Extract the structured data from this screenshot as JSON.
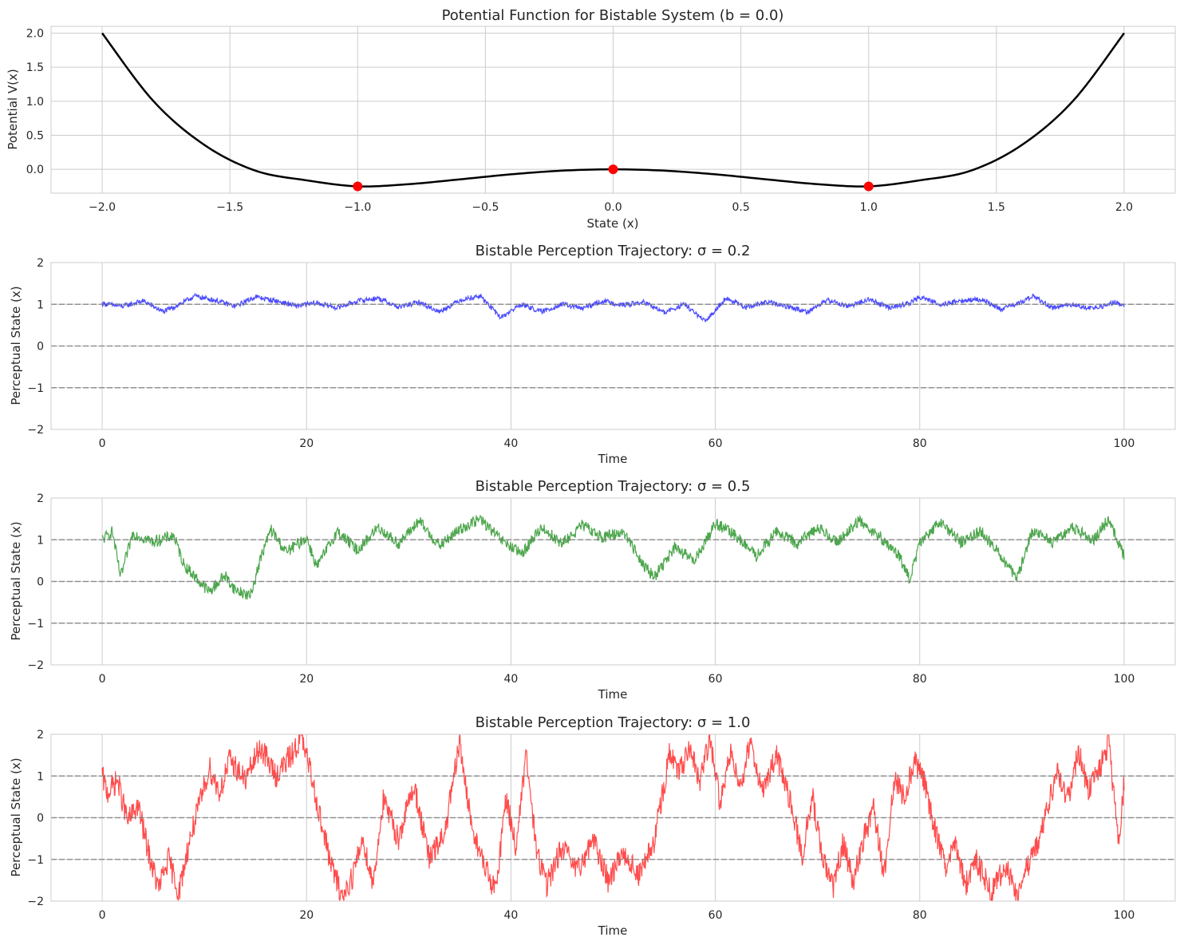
{
  "chart_data": [
    {
      "type": "line",
      "title": "Potential Function for Bistable System (b = 0.0)",
      "xlabel": "State (x)",
      "ylabel": "Potential V(x)",
      "xlim": [
        -2.2,
        2.2
      ],
      "ylim": [
        -0.35,
        2.1
      ],
      "xticks": [
        "−2.0",
        "−1.5",
        "−1.0",
        "−0.5",
        "0.0",
        "0.5",
        "1.0",
        "1.5",
        "2.0"
      ],
      "yticks": [
        "0.0",
        "0.5",
        "1.0",
        "1.5",
        "2.0"
      ],
      "grid": true,
      "series": [
        {
          "color": "#000000",
          "x": [
            -2.0,
            -1.8,
            -1.6,
            -1.4,
            -1.2,
            -1.0,
            -0.8,
            -0.6,
            -0.4,
            -0.2,
            0.0,
            0.2,
            0.4,
            0.6,
            0.8,
            1.0,
            1.2,
            1.4,
            1.6,
            1.8,
            2.0
          ],
          "y": [
            2.0,
            1.0044,
            0.3584,
            -0.0196,
            -0.1616,
            -0.25,
            -0.2176,
            -0.1476,
            -0.0736,
            -0.0196,
            0.0,
            -0.0196,
            -0.0736,
            -0.1476,
            -0.2176,
            -0.25,
            -0.1616,
            -0.0196,
            0.3584,
            1.0044,
            2.0
          ]
        }
      ],
      "points": {
        "color": "#ff0000",
        "x": [
          -1.0,
          0.0,
          1.0
        ],
        "y": [
          -0.25,
          0.0,
          -0.25
        ]
      }
    },
    {
      "type": "line",
      "title": "Bistable Perception Trajectory: σ = 0.2",
      "xlabel": "Time",
      "ylabel": "Perceptual State (x)",
      "xlim": [
        -5,
        105
      ],
      "ylim": [
        -2,
        2
      ],
      "xticks": [
        "0",
        "20",
        "40",
        "60",
        "80",
        "100"
      ],
      "yticks": [
        "−2",
        "−1",
        "0",
        "1",
        "2"
      ],
      "grid": true,
      "reference_lines": [
        -1,
        0,
        1
      ],
      "series": [
        {
          "color": "#0000ff",
          "x": [
            0,
            2,
            4,
            6,
            8,
            9,
            11,
            13,
            15,
            17,
            19,
            21,
            23,
            25,
            27,
            29,
            31,
            33,
            35,
            37,
            39,
            41,
            43,
            45,
            47,
            49,
            51,
            53,
            55,
            57,
            59,
            61,
            63,
            65,
            67,
            69,
            71,
            73,
            75,
            77,
            79,
            80,
            82,
            84,
            86,
            88,
            90,
            91,
            93,
            95,
            97,
            99,
            100
          ],
          "y": [
            1.02,
            0.95,
            1.08,
            0.82,
            1.05,
            1.2,
            1.1,
            0.95,
            1.18,
            1.08,
            0.96,
            1.03,
            0.92,
            1.08,
            1.15,
            0.93,
            1.05,
            0.82,
            1.1,
            1.2,
            0.68,
            1.0,
            0.82,
            1.0,
            0.9,
            1.08,
            0.98,
            1.05,
            0.8,
            1.0,
            0.58,
            1.15,
            0.92,
            1.05,
            0.95,
            0.82,
            1.1,
            0.95,
            1.12,
            0.92,
            1.02,
            1.18,
            1.0,
            1.08,
            1.12,
            0.88,
            1.05,
            1.2,
            0.92,
            1.0,
            0.88,
            1.05,
            0.96
          ]
        }
      ]
    },
    {
      "type": "line",
      "title": "Bistable Perception Trajectory: σ = 0.5",
      "xlabel": "Time",
      "ylabel": "Perceptual State (x)",
      "xlim": [
        -5,
        105
      ],
      "ylim": [
        -2,
        2
      ],
      "xticks": [
        "0",
        "20",
        "40",
        "60",
        "80",
        "100"
      ],
      "yticks": [
        "−2",
        "−1",
        "0",
        "1",
        "2"
      ],
      "grid": true,
      "reference_lines": [
        -1,
        0,
        1
      ],
      "series": [
        {
          "color": "#008000",
          "x": [
            0,
            1,
            1.8,
            3,
            5,
            7,
            8,
            9.5,
            10.5,
            12,
            13,
            14.5,
            15.5,
            16.5,
            18,
            20,
            21,
            23,
            25,
            27,
            29,
            31,
            33,
            35,
            37,
            39,
            41,
            43,
            45,
            47,
            49,
            51,
            53,
            54,
            56,
            58,
            60,
            62,
            64,
            66,
            68,
            70,
            72,
            74,
            76,
            78,
            79,
            80,
            82,
            84,
            86,
            88,
            89.5,
            91,
            93,
            95,
            97,
            98.5,
            100
          ],
          "y": [
            1.0,
            1.2,
            0.1,
            1.15,
            0.95,
            1.1,
            0.4,
            0.0,
            -0.25,
            0.15,
            -0.2,
            -0.35,
            0.55,
            1.25,
            0.7,
            1.05,
            0.35,
            1.2,
            0.75,
            1.3,
            0.9,
            1.45,
            0.85,
            1.25,
            1.5,
            1.0,
            0.65,
            1.3,
            0.9,
            1.35,
            1.05,
            1.2,
            0.4,
            0.1,
            0.8,
            0.5,
            1.4,
            1.1,
            0.6,
            1.2,
            0.9,
            1.3,
            0.95,
            1.45,
            1.1,
            0.6,
            0.05,
            0.9,
            1.45,
            0.95,
            1.2,
            0.6,
            0.05,
            1.2,
            0.95,
            1.3,
            1.0,
            1.5,
            0.6
          ]
        }
      ]
    },
    {
      "type": "line",
      "title": "Bistable Perception Trajectory: σ = 1.0",
      "xlabel": "Time",
      "ylabel": "Perceptual State (x)",
      "xlim": [
        -5,
        105
      ],
      "ylim": [
        -2,
        2
      ],
      "xticks": [
        "0",
        "20",
        "40",
        "60",
        "80",
        "100"
      ],
      "yticks": [
        "−2",
        "−1",
        "0",
        "1",
        "2"
      ],
      "grid": true,
      "reference_lines": [
        -1,
        0,
        1
      ],
      "series": [
        {
          "color": "#ff0000",
          "x": [
            0,
            0.5,
            1.5,
            2.5,
            3.5,
            4.5,
            5.5,
            6.5,
            7.5,
            8.5,
            9.5,
            10.5,
            11.5,
            12.5,
            14,
            15.5,
            17,
            18.5,
            19.5,
            20.5,
            21.5,
            22.5,
            23.5,
            24.5,
            25.5,
            26.5,
            27.5,
            29,
            30.5,
            32,
            33.5,
            35,
            36,
            37,
            38.5,
            39.5,
            40.5,
            41.5,
            42.5,
            43.5,
            45,
            46.5,
            48,
            49.5,
            51,
            52.5,
            54,
            55.5,
            56.5,
            57.5,
            58.5,
            59.5,
            60.5,
            61.5,
            62.5,
            63.5,
            64.5,
            66,
            67.5,
            68.5,
            69.5,
            70.5,
            71.5,
            72.5,
            73.5,
            74.5,
            75.5,
            76.5,
            77.5,
            78.5,
            79.5,
            80.5,
            81.5,
            82.5,
            83.5,
            84.5,
            85.5,
            87,
            88.5,
            89.5,
            90.5,
            91.5,
            92.5,
            93.5,
            94.5,
            95.5,
            96.5,
            97.5,
            98.5,
            99.5,
            100
          ],
          "y": [
            1.0,
            0.6,
            0.9,
            -0.1,
            0.3,
            -0.8,
            -1.7,
            -1.0,
            -1.8,
            -0.6,
            0.3,
            1.2,
            0.6,
            1.4,
            0.9,
            1.7,
            1.0,
            1.5,
            1.9,
            1.0,
            -0.2,
            -1.2,
            -1.9,
            -1.4,
            -0.5,
            -1.6,
            0.4,
            -0.5,
            0.8,
            -1.0,
            -0.4,
            1.8,
            0.0,
            -0.9,
            -1.8,
            0.5,
            -0.7,
            1.5,
            -0.8,
            -1.6,
            -0.7,
            -1.3,
            -0.5,
            -1.5,
            -0.8,
            -1.4,
            -0.6,
            1.5,
            1.1,
            1.6,
            0.9,
            1.9,
            0.3,
            1.6,
            0.8,
            1.9,
            0.6,
            1.5,
            0.2,
            -0.9,
            0.5,
            -1.0,
            -1.7,
            -0.6,
            -1.5,
            -0.5,
            0.2,
            -1.4,
            0.9,
            0.5,
            1.4,
            0.8,
            -0.3,
            -1.2,
            -0.7,
            -1.6,
            -1.0,
            -1.8,
            -1.1,
            -1.9,
            -1.2,
            -0.7,
            0.3,
            1.1,
            0.4,
            1.6,
            0.7,
            1.1,
            1.8,
            -0.7,
            0.9
          ]
        }
      ]
    }
  ]
}
